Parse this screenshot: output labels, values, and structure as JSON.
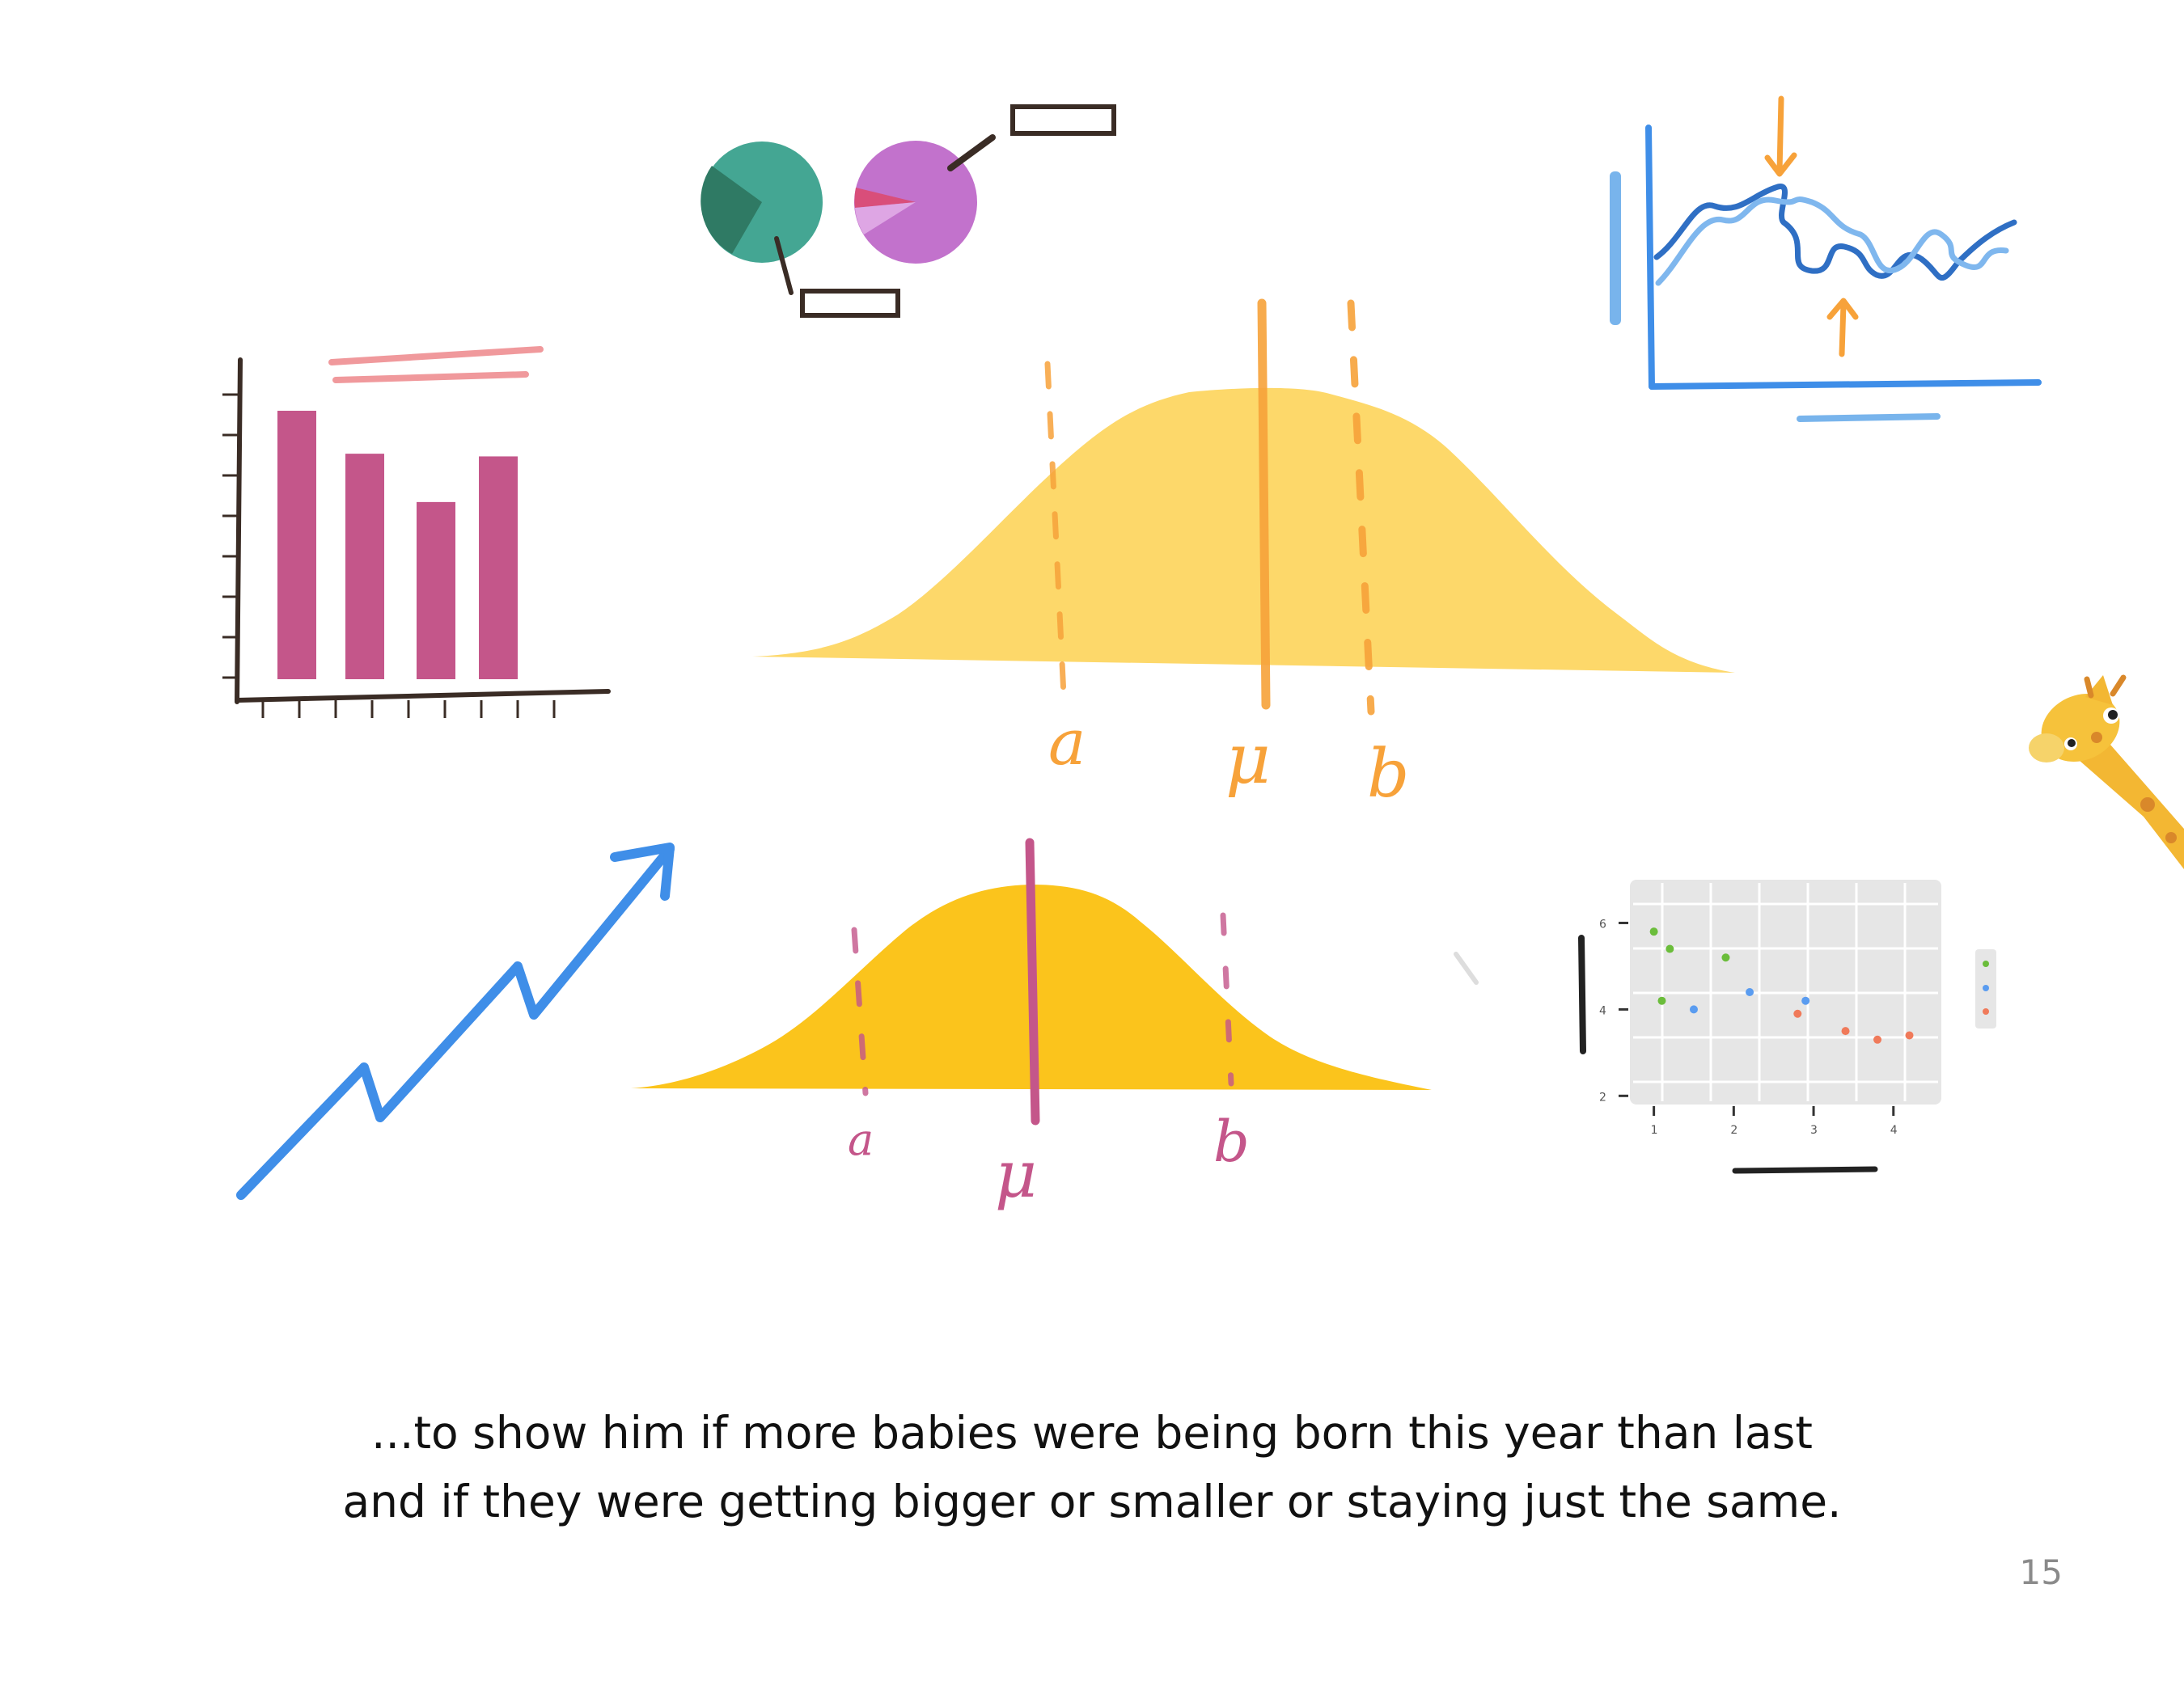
{
  "caption": {
    "line1": "...to show him if more babies were being born this year than last",
    "line2": "and if they were getting bigger or smaller or staying just the same."
  },
  "page_number": "15",
  "labels": {
    "big_curve": {
      "left": "a",
      "mean": "μ",
      "right": "b"
    },
    "small_curve": {
      "left": "a",
      "mean": "μ",
      "right": "b"
    }
  },
  "doodles": {
    "bar_chart": {
      "values": [
        100,
        84,
        66,
        83
      ]
    },
    "pies": [
      {
        "color": "#44a693",
        "slice_color": "#2f7a64"
      },
      {
        "color": "#c272cc",
        "slice_color": "#d94e7a"
      }
    ],
    "scatter": {
      "y_ticks": [
        "6",
        "4",
        "2"
      ],
      "x_ticks": [
        "1",
        "2",
        "3",
        "4"
      ],
      "points": [
        {
          "x": 1.0,
          "y": 5.8,
          "c": "#6bbd3b"
        },
        {
          "x": 1.2,
          "y": 5.4,
          "c": "#6bbd3b"
        },
        {
          "x": 1.9,
          "y": 5.2,
          "c": "#6bbd3b"
        },
        {
          "x": 1.1,
          "y": 4.2,
          "c": "#6bbd3b"
        },
        {
          "x": 1.5,
          "y": 4.0,
          "c": "#5a9cf0"
        },
        {
          "x": 2.2,
          "y": 4.4,
          "c": "#5a9cf0"
        },
        {
          "x": 2.9,
          "y": 4.2,
          "c": "#5a9cf0"
        },
        {
          "x": 2.8,
          "y": 3.9,
          "c": "#f07a5a"
        },
        {
          "x": 3.4,
          "y": 3.5,
          "c": "#f07a5a"
        },
        {
          "x": 3.8,
          "y": 3.3,
          "c": "#f07a5a"
        },
        {
          "x": 4.2,
          "y": 3.4,
          "c": "#f07a5a"
        }
      ]
    }
  },
  "colors": {
    "yellow_light": "#fdd86a",
    "yellow_dark": "#fbc41c",
    "orange": "#f7a23a",
    "magenta": "#c4568a",
    "blue": "#3f8ee8",
    "dark_line": "#3a2c25"
  }
}
